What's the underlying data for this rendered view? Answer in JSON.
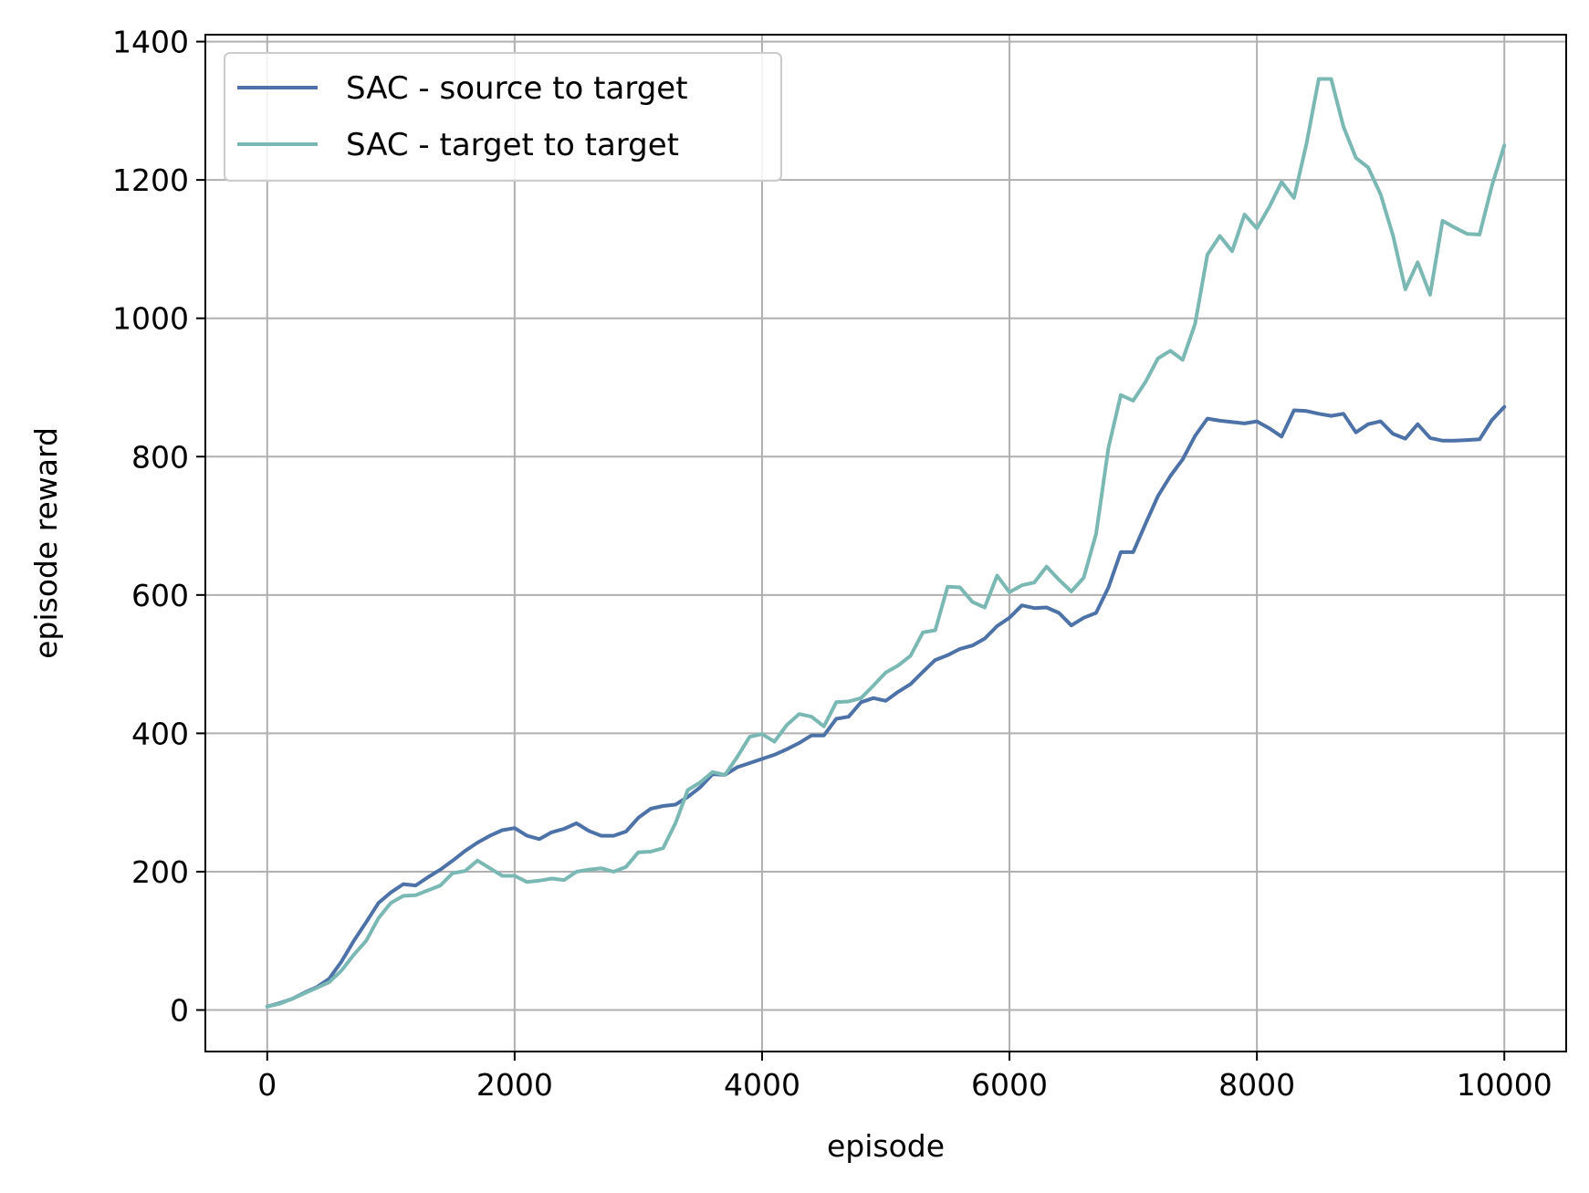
{
  "chart_data": {
    "type": "line",
    "title": "",
    "xlabel": "episode",
    "ylabel": "episode reward",
    "xlim": [
      -500,
      10500
    ],
    "ylim": [
      -60,
      1410
    ],
    "xticks": [
      0,
      2000,
      4000,
      6000,
      8000,
      10000
    ],
    "yticks": [
      0,
      200,
      400,
      600,
      800,
      1000,
      1200,
      1400
    ],
    "grid": true,
    "legend_position": "upper-left",
    "x": [
      0,
      100,
      200,
      300,
      400,
      500,
      600,
      700,
      800,
      900,
      1000,
      1100,
      1200,
      1300,
      1400,
      1500,
      1600,
      1700,
      1800,
      1900,
      2000,
      2100,
      2200,
      2300,
      2400,
      2500,
      2600,
      2700,
      2800,
      2900,
      3000,
      3100,
      3200,
      3300,
      3400,
      3500,
      3600,
      3700,
      3800,
      3900,
      4000,
      4100,
      4200,
      4300,
      4400,
      4500,
      4600,
      4700,
      4800,
      4900,
      5000,
      5100,
      5200,
      5300,
      5400,
      5500,
      5600,
      5700,
      5800,
      5900,
      6000,
      6100,
      6200,
      6300,
      6400,
      6500,
      6600,
      6700,
      6800,
      6900,
      7000,
      7100,
      7200,
      7300,
      7400,
      7500,
      7600,
      7700,
      7800,
      7900,
      8000,
      8100,
      8200,
      8300,
      8400,
      8500,
      8600,
      8700,
      8800,
      8900,
      9000,
      9100,
      9200,
      9300,
      9400,
      9500,
      9600,
      9700,
      9800,
      9900,
      10000
    ],
    "series": [
      {
        "name": "SAC - source to target",
        "color": "#4c72a8",
        "values": [
          5,
          10,
          16,
          25,
          33,
          45,
          70,
          100,
          127,
          155,
          170,
          182,
          180,
          192,
          203,
          216,
          230,
          242,
          252,
          260,
          263,
          252,
          247,
          257,
          262,
          270,
          259,
          252,
          252,
          258,
          278,
          291,
          295,
          297,
          308,
          322,
          341,
          340,
          351,
          357,
          363,
          369,
          377,
          386,
          397,
          397,
          421,
          424,
          445,
          451,
          447,
          460,
          471,
          489,
          506,
          513,
          522,
          527,
          537,
          555,
          567,
          585,
          581,
          582,
          574,
          556,
          567,
          574,
          611,
          662,
          662,
          703,
          743,
          772,
          796,
          830,
          855,
          852,
          850,
          848,
          851,
          841,
          829,
          867,
          866,
          862,
          859,
          862,
          835,
          847,
          851,
          833,
          826,
          847,
          827,
          823,
          823,
          824,
          825,
          853,
          872
        ]
      },
      {
        "name": "SAC - target to target",
        "color": "#7ab8b4",
        "values": [
          5,
          9,
          16,
          24,
          32,
          40,
          57,
          80,
          100,
          133,
          155,
          165,
          166,
          173,
          180,
          198,
          201,
          216,
          205,
          194,
          194,
          185,
          187,
          190,
          188,
          200,
          203,
          205,
          200,
          207,
          228,
          229,
          234,
          270,
          318,
          329,
          344,
          340,
          366,
          395,
          399,
          388,
          412,
          428,
          424,
          410,
          445,
          446,
          451,
          469,
          488,
          498,
          512,
          546,
          549,
          612,
          611,
          590,
          582,
          628,
          604,
          614,
          618,
          641,
          622,
          605,
          625,
          688,
          813,
          889,
          881,
          908,
          942,
          953,
          940,
          992,
          1092,
          1119,
          1097,
          1150,
          1130,
          1161,
          1197,
          1174,
          1252,
          1346,
          1346,
          1277,
          1232,
          1218,
          1179,
          1120,
          1042,
          1081,
          1034,
          1141,
          1131,
          1122,
          1121,
          1192,
          1250
        ]
      }
    ]
  }
}
